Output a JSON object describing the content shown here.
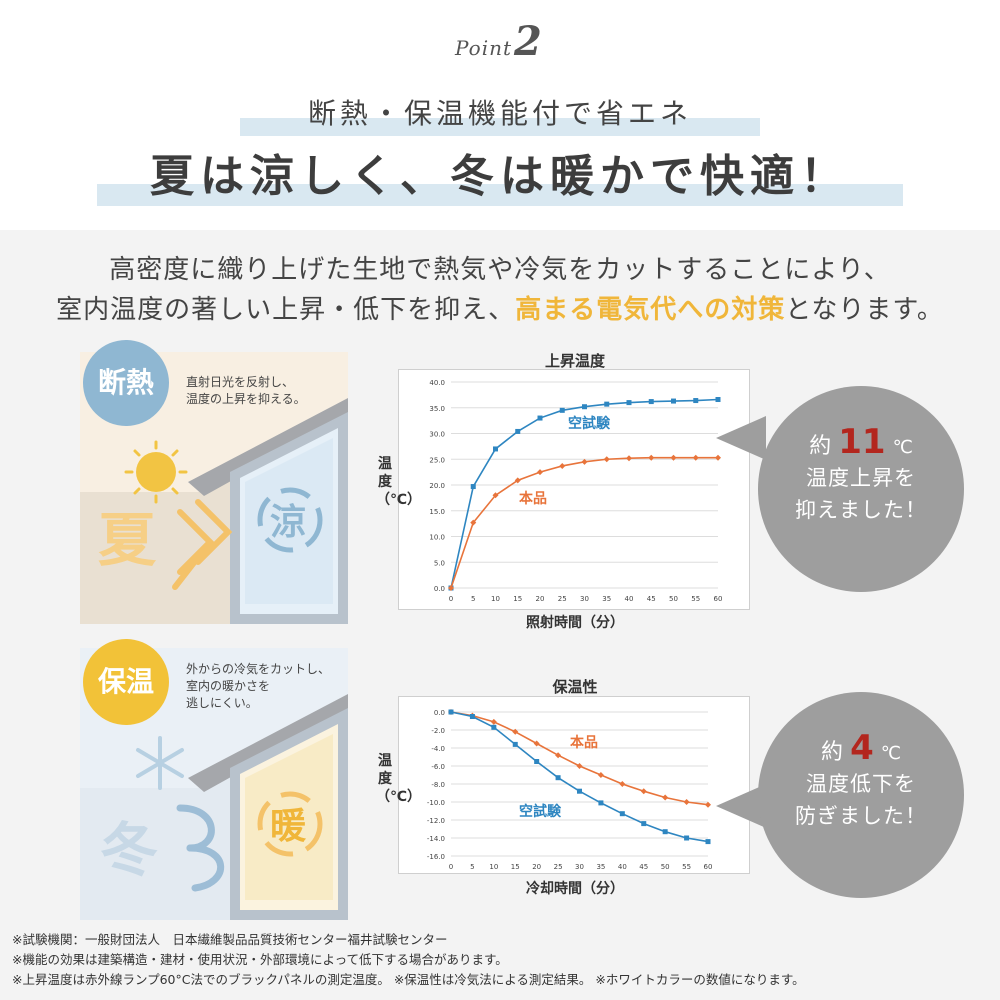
{
  "header": {
    "point_word": "Point",
    "point_num": "2",
    "subtitle": "断熱・保温機能付で省エネ",
    "title": "夏は涼しく、冬は暖かで快適！"
  },
  "description": {
    "line1": "高密度に織り上げた生地で熱気や冷気をカットすることにより、",
    "line2_pre": "室内温度の著しい上昇・低下を抑え、",
    "line2_accent": "高まる電気代への対策",
    "line2_post": "となります。"
  },
  "panels": {
    "insulation": {
      "badge": "断熱",
      "text1": "直射日光を反射し、",
      "text2": "温度の上昇を抑える。",
      "outside": "夏",
      "inside": "涼"
    },
    "warming": {
      "badge": "保温",
      "text1": "外からの冷気をカットし、",
      "text2": "室内の暖かさを",
      "text3": "逃しにくい。",
      "outside": "冬",
      "inside": "暖"
    }
  },
  "bubbles": {
    "rise": {
      "prefix": "約",
      "value": "11",
      "unit": "℃",
      "line2": "温度上昇を",
      "line3": "抑えました！"
    },
    "drop": {
      "prefix": "約",
      "value": "4",
      "unit": "℃",
      "line2": "温度低下を",
      "line3": "防ぎました！"
    }
  },
  "colors": {
    "empty_test": "#2e86c1",
    "product": "#e8743b",
    "accent": "#f0b63a",
    "bubble": "#9e9e9e",
    "bubble_number": "#b3261e"
  },
  "chart_data": [
    {
      "type": "line",
      "title": "上昇温度",
      "xlabel": "照射時間（分）",
      "ylabel": "温度（℃）",
      "x": [
        0,
        5,
        10,
        15,
        20,
        25,
        30,
        35,
        40,
        45,
        50,
        55,
        60
      ],
      "ylim": [
        0,
        40
      ],
      "yticks": [
        "0.0",
        "5.0",
        "10.0",
        "15.0",
        "20.0",
        "25.0",
        "30.0",
        "35.0",
        "40.0"
      ],
      "grid": true,
      "series": [
        {
          "name": "空試験",
          "marker": "square",
          "values": [
            0,
            19.7,
            27.0,
            30.4,
            33.0,
            34.5,
            35.2,
            35.7,
            36.0,
            36.2,
            36.3,
            36.4,
            36.6
          ]
        },
        {
          "name": "本品",
          "marker": "diamond",
          "values": [
            0,
            12.7,
            18.0,
            20.9,
            22.5,
            23.7,
            24.5,
            25.0,
            25.2,
            25.3,
            25.3,
            25.3,
            25.3
          ]
        }
      ]
    },
    {
      "type": "line",
      "title": "保温性",
      "xlabel": "冷却時間（分）",
      "ylabel": "温度（℃）",
      "x": [
        0,
        5,
        10,
        15,
        20,
        25,
        30,
        35,
        40,
        45,
        50,
        55,
        60
      ],
      "ylim": [
        -16,
        0
      ],
      "yticks": [
        "0.0",
        "-2.0",
        "-4.0",
        "-6.0",
        "-8.0",
        "-10.0",
        "-12.0",
        "-14.0",
        "-16.0"
      ],
      "grid": true,
      "series": [
        {
          "name": "本品",
          "marker": "diamond",
          "values": [
            0,
            -0.4,
            -1.1,
            -2.2,
            -3.5,
            -4.8,
            -6.0,
            -7.0,
            -8.0,
            -8.8,
            -9.5,
            -10.0,
            -10.3
          ]
        },
        {
          "name": "空試験",
          "marker": "square",
          "values": [
            0,
            -0.5,
            -1.7,
            -3.6,
            -5.5,
            -7.3,
            -8.8,
            -10.1,
            -11.3,
            -12.4,
            -13.3,
            -14.0,
            -14.4
          ]
        }
      ]
    }
  ],
  "notes": [
    "※試験機関：一般財団法人　日本繊維製品品質技術センター福井試験センター",
    "※機能の効果は建築構造・建材・使用状況・外部環境によって低下する場合があります。",
    "※上昇温度は赤外線ランプ60°C法でのブラックパネルの測定温度。 ※保温性は冷気法による測定結果。 ※ホワイトカラーの数値になります。"
  ]
}
